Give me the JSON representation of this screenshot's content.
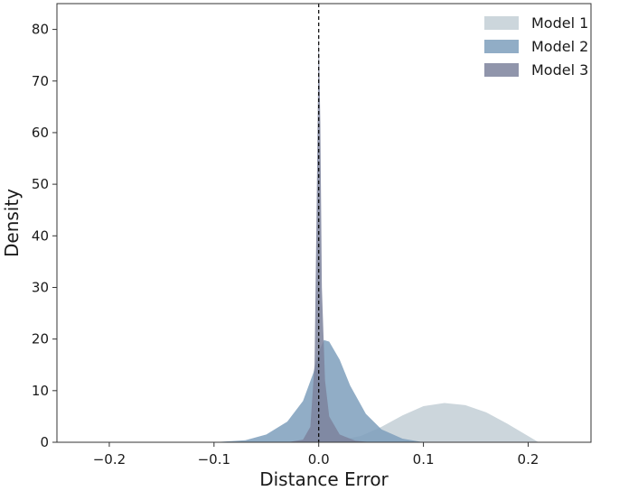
{
  "chart_data": {
    "type": "area",
    "title": "",
    "xlabel": "Distance Error",
    "ylabel": "Density",
    "xlim": [
      -0.25,
      0.26
    ],
    "ylim": [
      0,
      85
    ],
    "xticks": [
      -0.2,
      -0.1,
      0.0,
      0.1,
      0.2
    ],
    "xtick_labels": [
      "−0.2",
      "−0.1",
      "0.0",
      "0.1",
      "0.2"
    ],
    "yticks": [
      0,
      10,
      20,
      30,
      40,
      50,
      60,
      70,
      80
    ],
    "ytick_labels": [
      "0",
      "10",
      "20",
      "30",
      "40",
      "50",
      "60",
      "70",
      "80"
    ],
    "grid": false,
    "legend_position": "top-right",
    "reference_line": {
      "x": 0.0,
      "style": "dashed",
      "color": "#000000"
    },
    "series": [
      {
        "name": "Model 1",
        "color": "#c3cfd6",
        "x": [
          0.0,
          0.02,
          0.04,
          0.06,
          0.08,
          0.1,
          0.12,
          0.14,
          0.16,
          0.18,
          0.2,
          0.21
        ],
        "y": [
          0.0,
          0.4,
          1.2,
          3.0,
          5.2,
          7.0,
          7.6,
          7.2,
          5.8,
          3.6,
          1.2,
          0.0
        ]
      },
      {
        "name": "Model 2",
        "color": "#7e9fbc",
        "x": [
          -0.1,
          -0.07,
          -0.05,
          -0.03,
          -0.015,
          -0.005,
          0.0,
          0.005,
          0.01,
          0.02,
          0.03,
          0.045,
          0.06,
          0.08,
          0.1
        ],
        "y": [
          0.0,
          0.4,
          1.5,
          4.0,
          8.0,
          13.5,
          17.5,
          19.8,
          19.5,
          16.0,
          11.0,
          5.5,
          2.5,
          0.7,
          0.0
        ]
      },
      {
        "name": "Model 3",
        "color": "#7c829c",
        "x": [
          -0.03,
          -0.015,
          -0.008,
          -0.004,
          -0.002,
          0.0,
          0.0015,
          0.003,
          0.006,
          0.01,
          0.02,
          0.035,
          0.05
        ],
        "y": [
          0.0,
          0.5,
          3.0,
          15.0,
          45.0,
          80.0,
          62.0,
          30.0,
          12.0,
          5.0,
          1.5,
          0.3,
          0.0
        ]
      }
    ]
  }
}
